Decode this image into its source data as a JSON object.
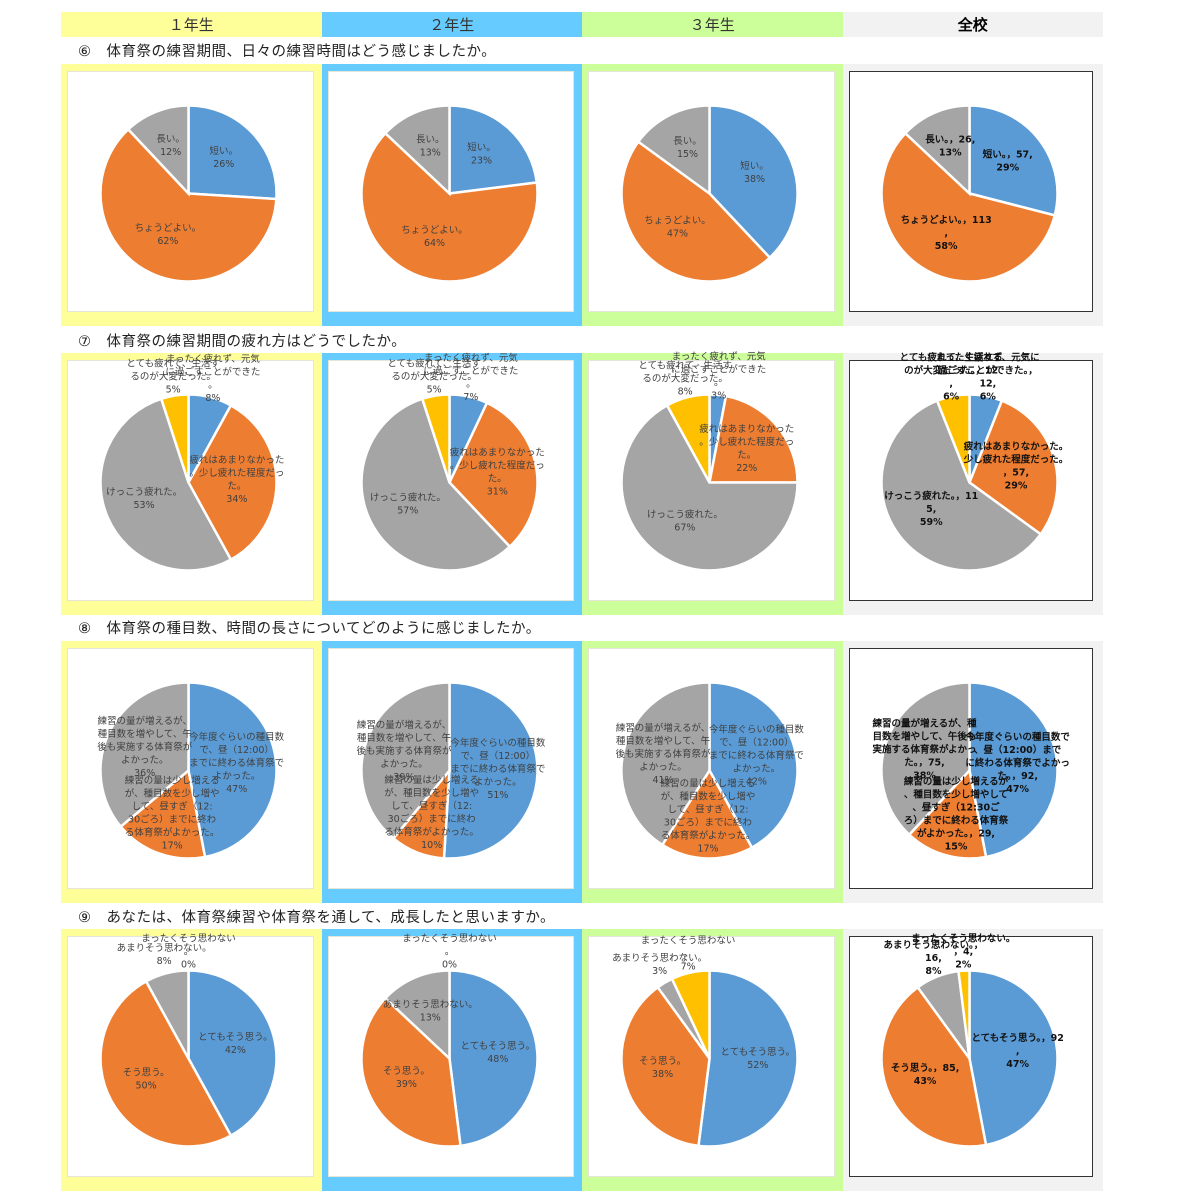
{
  "header": {
    "columns": [
      "１年生",
      "２年生",
      "３年生",
      "全校"
    ]
  },
  "colors": {
    "blue": "#5b9bd5",
    "orange": "#ed7d31",
    "gray": "#a5a5a5",
    "yellow": "#ffc000",
    "band_g1": "#ffff99",
    "band_g2": "#66ccff",
    "band_g3": "#ccff99",
    "band_all": "#f2f2f2"
  },
  "questions": [
    "⑥　体育祭の練習期間、日々の練習時間はどう感じましたか。",
    "⑦　体育祭の練習期間の疲れ方はどうでしたか。",
    "⑧　体育祭の種目数、時間の長さについてどのように感じましたか。",
    "⑨　あなたは、体育祭練習や体育祭を通して、成長したと思いますか。"
  ],
  "chart_data": [
    {
      "type": "pie",
      "question": 6,
      "group": "１年生",
      "slices": [
        {
          "label": "短い。",
          "value": 26,
          "pct": "26%",
          "color": "blue"
        },
        {
          "label": "ちょうどよい。",
          "value": 62,
          "pct": "62%",
          "color": "orange"
        },
        {
          "label": "長い。",
          "value": 12,
          "pct": "12%",
          "color": "gray"
        }
      ]
    },
    {
      "type": "pie",
      "question": 6,
      "group": "２年生",
      "slices": [
        {
          "label": "短い。",
          "value": 23,
          "pct": "23%",
          "color": "blue"
        },
        {
          "label": "ちょうどよい。",
          "value": 64,
          "pct": "64%",
          "color": "orange"
        },
        {
          "label": "長い。",
          "value": 13,
          "pct": "13%",
          "color": "gray"
        }
      ]
    },
    {
      "type": "pie",
      "question": 6,
      "group": "３年生",
      "slices": [
        {
          "label": "短い。",
          "value": 38,
          "pct": "38%",
          "color": "blue"
        },
        {
          "label": "ちょうどよい。",
          "value": 47,
          "pct": "47%",
          "color": "orange"
        },
        {
          "label": "長い。",
          "value": 15,
          "pct": "15%",
          "color": "gray"
        }
      ]
    },
    {
      "type": "pie",
      "question": 6,
      "group": "全校",
      "slices": [
        {
          "label": "短い。",
          "count": 57,
          "value": 29,
          "pct": "29%",
          "color": "blue"
        },
        {
          "label": "ちょうどよい。",
          "count": 113,
          "value": 58,
          "pct": "58%",
          "color": "orange"
        },
        {
          "label": "長い。",
          "count": 26,
          "value": 13,
          "pct": "13%",
          "color": "gray"
        }
      ]
    },
    {
      "type": "pie",
      "question": 7,
      "group": "１年生",
      "slices": [
        {
          "label": "まったく疲れず、元気に過ごすことができた。",
          "value": 8,
          "pct": "8%",
          "color": "blue"
        },
        {
          "label": "疲れはあまりなかった。少し疲れた程度だった。",
          "value": 34,
          "pct": "34%",
          "color": "orange"
        },
        {
          "label": "けっこう疲れた。",
          "value": 53,
          "pct": "53%",
          "color": "gray"
        },
        {
          "label": "とても疲れて、生活するのが大変だった。",
          "value": 5,
          "pct": "5%",
          "color": "yellow"
        }
      ]
    },
    {
      "type": "pie",
      "question": 7,
      "group": "２年生",
      "slices": [
        {
          "label": "まったく疲れず、元気に過ごすことができた。",
          "value": 7,
          "pct": "7%",
          "color": "blue"
        },
        {
          "label": "疲れはあまりなかった。少し疲れた程度だった。",
          "value": 31,
          "pct": "31%",
          "color": "orange"
        },
        {
          "label": "けっこう疲れた。",
          "value": 57,
          "pct": "57%",
          "color": "gray"
        },
        {
          "label": "とても疲れて、生活するのが大変だった。",
          "value": 5,
          "pct": "5%",
          "color": "yellow"
        }
      ]
    },
    {
      "type": "pie",
      "question": 7,
      "group": "３年生",
      "slices": [
        {
          "label": "まったく疲れず、元気に過ごすことができた。",
          "value": 3,
          "pct": "3%",
          "color": "blue"
        },
        {
          "label": "疲れはあまりなかった。少し疲れた程度だった。",
          "value": 22,
          "pct": "22%",
          "color": "orange"
        },
        {
          "label": "けっこう疲れた。",
          "value": 67,
          "pct": "67%",
          "color": "gray"
        },
        {
          "label": "とても疲れて、生活するのが大変だった。",
          "value": 8,
          "pct": "8%",
          "color": "yellow"
        }
      ]
    },
    {
      "type": "pie",
      "question": 7,
      "group": "全校",
      "slices": [
        {
          "label": "まったく疲れず、元気に過ごすことができた。",
          "count": 12,
          "value": 6,
          "pct": "6%",
          "color": "blue"
        },
        {
          "label": "疲れはあまりなかった。少し疲れた程度だった。",
          "count": 57,
          "value": 29,
          "pct": "29%",
          "color": "orange"
        },
        {
          "label": "けっこう疲れた。",
          "count": 115,
          "value": 59,
          "pct": "59%",
          "color": "gray"
        },
        {
          "label": "とても疲れて、生活するのが大変だった。",
          "count": 12,
          "value": 6,
          "pct": "6%",
          "color": "yellow"
        }
      ]
    },
    {
      "type": "pie",
      "question": 8,
      "group": "１年生",
      "slices": [
        {
          "label": "今年度ぐらいの種目数で、昼（12:00）までに終わる体育祭でよかった。",
          "value": 47,
          "pct": "47%",
          "color": "blue"
        },
        {
          "label": "練習の量は少し増えるが、種目数を少し増やして、昼すぎ（12:30ごろ）までに終わる体育祭がよかった。",
          "value": 17,
          "pct": "17%",
          "color": "orange"
        },
        {
          "label": "練習の量が増えるが、種目数を増やして、午後も実施する体育祭がよかった。",
          "value": 36,
          "pct": "36%",
          "color": "gray"
        }
      ]
    },
    {
      "type": "pie",
      "question": 8,
      "group": "２年生",
      "slices": [
        {
          "label": "今年度ぐらいの種目数で、昼（12:00）までに終わる体育祭でよかった。",
          "value": 51,
          "pct": "51%",
          "color": "blue"
        },
        {
          "label": "練習の量は少し増えるが、種目数を少し増やして、昼すぎ（12:30ごろ）までに終わる体育祭がよかった。",
          "value": 10,
          "pct": "10%",
          "color": "orange"
        },
        {
          "label": "練習の量が増えるが、種目数を増やして、午後も実施する体育祭がよかった。",
          "value": 39,
          "pct": "39%",
          "color": "gray"
        }
      ]
    },
    {
      "type": "pie",
      "question": 8,
      "group": "３年生",
      "slices": [
        {
          "label": "今年度ぐらいの種目数で、昼（12:00）までに終わる体育祭でよかった。",
          "value": 42,
          "pct": "42%",
          "color": "blue"
        },
        {
          "label": "練習の量は少し増えるが、種目数を少し増やして、昼すぎ（12:30ごろ）までに終わる体育祭がよかった。",
          "value": 17,
          "pct": "17%",
          "color": "orange"
        },
        {
          "label": "練習の量が増えるが、種目数を増やして、午後も実施する体育祭がよかった。",
          "value": 41,
          "pct": "41%",
          "color": "gray"
        }
      ]
    },
    {
      "type": "pie",
      "question": 8,
      "group": "全校",
      "slices": [
        {
          "label": "今年度ぐらいの種目数で、昼（12:00）までに終わる体育祭でよかった。",
          "count": 92,
          "value": 47,
          "pct": "47%",
          "color": "blue"
        },
        {
          "label": "練習の量は少し増えるが、種目数を少し増やして、昼すぎ（12:30ごろ）までに終わる体育祭がよかった。",
          "count": 29,
          "value": 15,
          "pct": "15%",
          "color": "orange"
        },
        {
          "label": "練習の量が増えるが、種目数を増やして、午後も実施する体育祭がよかった。",
          "count": 75,
          "value": 38,
          "pct": "38%",
          "color": "gray"
        }
      ]
    },
    {
      "type": "pie",
      "question": 9,
      "group": "１年生",
      "slices": [
        {
          "label": "とてもそう思う。",
          "value": 42,
          "pct": "42%",
          "color": "blue"
        },
        {
          "label": "そう思う。",
          "value": 50,
          "pct": "50%",
          "color": "orange"
        },
        {
          "label": "あまりそう思わない。",
          "value": 8,
          "pct": "8%",
          "color": "gray"
        },
        {
          "label": "まったくそう思わない。",
          "value": 0,
          "pct": "0%",
          "color": "yellow"
        }
      ]
    },
    {
      "type": "pie",
      "question": 9,
      "group": "２年生",
      "slices": [
        {
          "label": "とてもそう思う。",
          "value": 48,
          "pct": "48%",
          "color": "blue"
        },
        {
          "label": "そう思う。",
          "value": 39,
          "pct": "39%",
          "color": "orange"
        },
        {
          "label": "あまりそう思わない。",
          "value": 13,
          "pct": "13%",
          "color": "gray"
        },
        {
          "label": "まったくそう思わない。",
          "value": 0,
          "pct": "0%",
          "color": "yellow"
        }
      ]
    },
    {
      "type": "pie",
      "question": 9,
      "group": "３年生",
      "slices": [
        {
          "label": "とてもそう思う。",
          "value": 52,
          "pct": "52%",
          "color": "blue"
        },
        {
          "label": "そう思う。",
          "value": 38,
          "pct": "38%",
          "color": "orange"
        },
        {
          "label": "あまりそう思わない。",
          "value": 3,
          "pct": "3%",
          "color": "gray"
        },
        {
          "label": "まったくそう思わない。",
          "value": 7,
          "pct": "7%",
          "color": "yellow"
        }
      ]
    },
    {
      "type": "pie",
      "question": 9,
      "group": "全校",
      "slices": [
        {
          "label": "とてもそう思う。",
          "count": 92,
          "value": 47,
          "pct": "47%",
          "color": "blue"
        },
        {
          "label": "そう思う。",
          "count": 85,
          "value": 43,
          "pct": "43%",
          "color": "orange"
        },
        {
          "label": "あまりそう思わない。",
          "count": 16,
          "value": 8,
          "pct": "8%",
          "color": "gray"
        },
        {
          "label": "まったくそう思わない。",
          "count": 4,
          "value": 2,
          "pct": "2%",
          "color": "yellow"
        }
      ]
    }
  ]
}
